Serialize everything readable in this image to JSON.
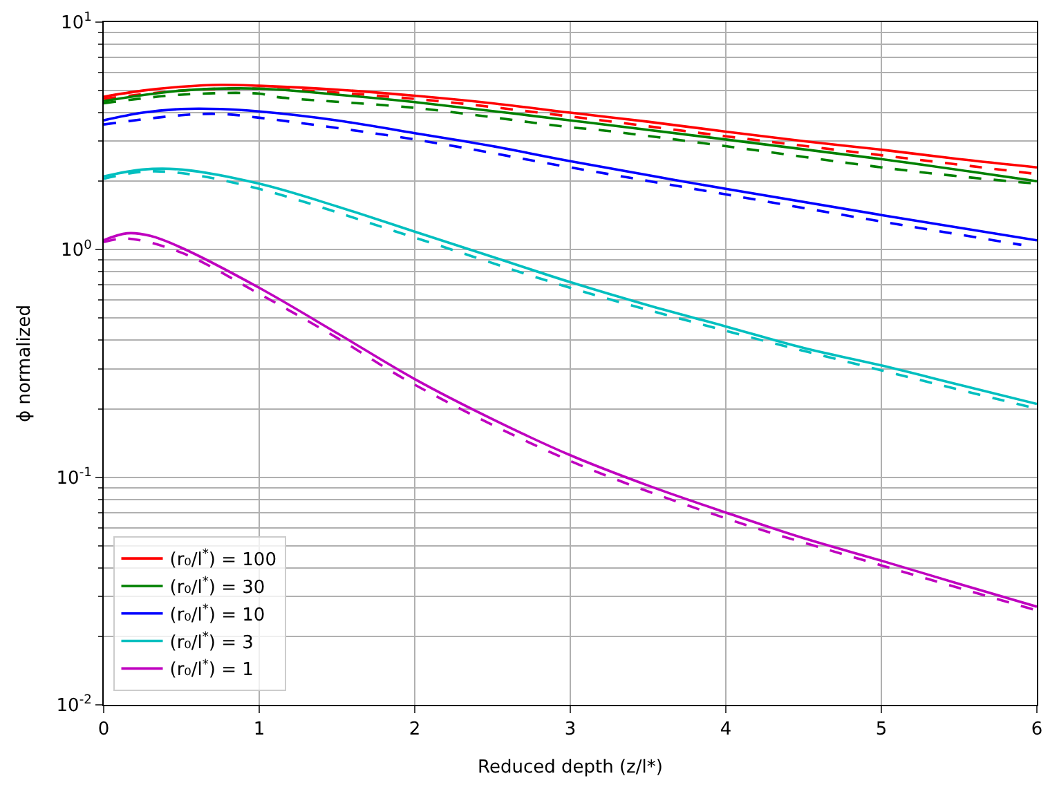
{
  "chart_data": {
    "type": "line",
    "xlabel": "Reduced depth (z/l*)",
    "ylabel": "ϕ normalized",
    "log": "y",
    "grid": true,
    "legend": "bottom left",
    "xlim": [
      0,
      6
    ],
    "xticks": [
      0,
      1,
      2,
      3,
      4,
      5,
      6
    ],
    "ylim": [
      0.01,
      10
    ],
    "yticks": [
      {
        "value": 0.01,
        "label": "10$^{-2}$"
      },
      {
        "value": 0.1,
        "label": "10$^{-1}$"
      },
      {
        "value": 1,
        "label": "10$^{0}$"
      },
      {
        "value": 10,
        "label": "10$^{1}$"
      }
    ],
    "series": [
      {
        "name": "(r₀/l$^{*}$) = 100",
        "color": "#ff0000",
        "line_style": "solid",
        "x": [
          0,
          0.25,
          0.5,
          0.75,
          1,
          1.5,
          2,
          2.5,
          3,
          3.5,
          4,
          4.5,
          5,
          5.5,
          6
        ],
        "values": [
          4.7,
          5.0,
          5.2,
          5.3,
          5.25,
          5.05,
          4.75,
          4.4,
          4.0,
          3.65,
          3.3,
          3.0,
          2.75,
          2.5,
          2.3
        ]
      },
      {
        "color": "#ff0000",
        "line_style": "dashed",
        "x": [
          0,
          0.5,
          1,
          2,
          3,
          4,
          5,
          6
        ],
        "values": [
          4.6,
          5.0,
          5.1,
          4.6,
          3.85,
          3.15,
          2.6,
          2.15
        ]
      },
      {
        "name": "(r₀/l$^{*}$) = 30",
        "color": "#008000",
        "line_style": "solid",
        "x": [
          0,
          0.5,
          1,
          1.5,
          2,
          3,
          4,
          5,
          6
        ],
        "values": [
          4.5,
          5.0,
          5.1,
          4.8,
          4.45,
          3.7,
          3.05,
          2.5,
          2.0
        ]
      },
      {
        "color": "#008000",
        "line_style": "dashed",
        "x": [
          0,
          0.5,
          1,
          1.1,
          2,
          3,
          3.2,
          4,
          5,
          5.5,
          6
        ],
        "values": [
          4.4,
          4.8,
          4.85,
          4.7,
          4.2,
          3.45,
          3.35,
          2.85,
          2.3,
          2.1,
          1.95
        ]
      },
      {
        "name": "(r₀/l$^{*}$) = 10",
        "color": "#0000ff",
        "line_style": "solid",
        "x": [
          0,
          0.25,
          0.5,
          0.75,
          1,
          1.5,
          2,
          2.5,
          3,
          4,
          5,
          6
        ],
        "values": [
          3.7,
          4.0,
          4.15,
          4.15,
          4.05,
          3.7,
          3.25,
          2.85,
          2.45,
          1.85,
          1.42,
          1.1
        ]
      },
      {
        "color": "#0000ff",
        "line_style": "dashed",
        "x": [
          0,
          0.5,
          0.75,
          1,
          2,
          3,
          4,
          5,
          5.9
        ],
        "values": [
          3.55,
          3.9,
          3.95,
          3.8,
          3.05,
          2.3,
          1.75,
          1.33,
          1.05
        ]
      },
      {
        "name": "(r₀/l$^{*}$) = 3",
        "color": "#00bfbf",
        "line_style": "solid",
        "x": [
          0,
          0.25,
          0.5,
          1,
          1.5,
          2,
          2.5,
          3,
          3.5,
          4,
          4.5,
          5,
          5.5,
          6
        ],
        "values": [
          2.1,
          2.25,
          2.25,
          1.95,
          1.55,
          1.2,
          0.93,
          0.72,
          0.57,
          0.46,
          0.37,
          0.31,
          0.255,
          0.21
        ]
      },
      {
        "color": "#00bfbf",
        "line_style": "dashed",
        "x": [
          0,
          0.25,
          0.5,
          1,
          2,
          3,
          4,
          5,
          6
        ],
        "values": [
          2.05,
          2.2,
          2.17,
          1.85,
          1.13,
          0.68,
          0.44,
          0.295,
          0.2
        ]
      },
      {
        "name": "(r₀/l$^{*}$) = 1",
        "color": "#bf00bf",
        "line_style": "solid",
        "x": [
          0,
          0.15,
          0.3,
          0.5,
          1,
          1.5,
          2,
          2.5,
          3,
          3.5,
          4,
          4.5,
          5,
          5.5,
          6
        ],
        "values": [
          1.1,
          1.18,
          1.15,
          1.02,
          0.68,
          0.43,
          0.27,
          0.18,
          0.125,
          0.092,
          0.07,
          0.054,
          0.043,
          0.034,
          0.027
        ]
      },
      {
        "color": "#bf00bf",
        "line_style": "dashed",
        "x": [
          0,
          0.15,
          0.5,
          1,
          1.5,
          2,
          3,
          4,
          5,
          6
        ],
        "values": [
          1.08,
          1.12,
          0.97,
          0.64,
          0.41,
          0.255,
          0.118,
          0.066,
          0.041,
          0.026
        ]
      }
    ]
  }
}
